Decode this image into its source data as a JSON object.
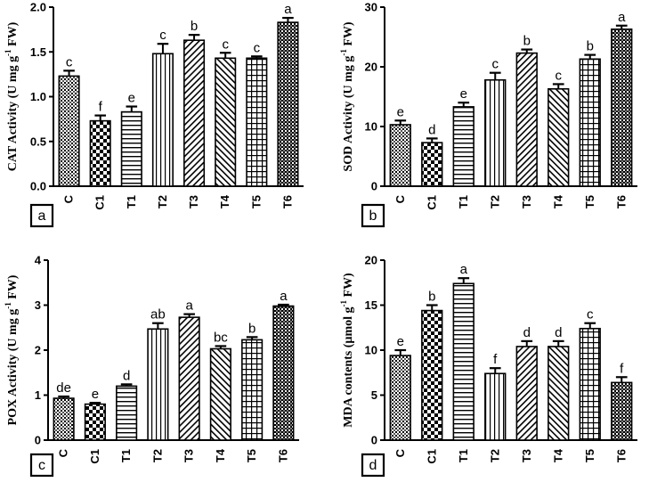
{
  "chart_data": [
    {
      "type": "bar",
      "panel": "a",
      "ylabel": "CAT Activity (U mg g-1 FW)",
      "ylabel_parts": [
        "CAT Activity (U mg g",
        "-1",
        " FW)"
      ],
      "ylim": [
        0,
        2.0
      ],
      "yticks": [
        "0.0",
        "0.5",
        "1.0",
        "1.5",
        "2.0"
      ],
      "categories": [
        "C",
        "C1",
        "T1",
        "T2",
        "T3",
        "T4",
        "T5",
        "T6"
      ],
      "values": [
        1.23,
        0.73,
        0.83,
        1.48,
        1.63,
        1.43,
        1.43,
        1.83
      ],
      "errors": [
        0.06,
        0.06,
        0.06,
        0.11,
        0.06,
        0.06,
        0.02,
        0.05
      ],
      "labels": [
        "c",
        "f",
        "e",
        "c",
        "b",
        "c",
        "c",
        "a"
      ]
    },
    {
      "type": "bar",
      "panel": "b",
      "ylabel": "SOD Activity (U mg g-1 FW)",
      "ylabel_parts": [
        "SOD Activity (U mg g",
        "-1",
        " FW)"
      ],
      "ylim": [
        0,
        30
      ],
      "yticks": [
        "0",
        "10",
        "20",
        "30"
      ],
      "categories": [
        "C",
        "C1",
        "T1",
        "T2",
        "T3",
        "T4",
        "T5",
        "T6"
      ],
      "values": [
        10.3,
        7.3,
        13.3,
        17.8,
        22.3,
        16.3,
        21.3,
        26.3
      ],
      "errors": [
        0.7,
        0.7,
        0.7,
        1.2,
        0.6,
        0.8,
        0.7,
        0.6
      ],
      "labels": [
        "e",
        "d",
        "e",
        "c",
        "b",
        "c",
        "b",
        "a"
      ]
    },
    {
      "type": "bar",
      "panel": "c",
      "ylabel": "POX Activity (U mg g-1 FW)",
      "ylabel_parts": [
        "POX Activity (U mg g",
        "-1",
        " FW)"
      ],
      "ylim": [
        0,
        4
      ],
      "yticks": [
        "0",
        "1",
        "2",
        "3",
        "4"
      ],
      "categories": [
        "C",
        "C1",
        "T1",
        "T2",
        "T3",
        "T4",
        "T5",
        "T6"
      ],
      "values": [
        0.93,
        0.8,
        1.2,
        2.47,
        2.73,
        2.03,
        2.23,
        2.98
      ],
      "errors": [
        0.04,
        0.03,
        0.04,
        0.13,
        0.07,
        0.06,
        0.06,
        0.03
      ],
      "labels": [
        "de",
        "e",
        "d",
        "ab",
        "a",
        "bc",
        "b",
        "a"
      ]
    },
    {
      "type": "bar",
      "panel": "d",
      "ylabel": "MDA contents (µmol g-1 FW)",
      "ylabel_parts": [
        "MDA contents (µmol g",
        "-1",
        " FW)"
      ],
      "ylim": [
        0,
        20
      ],
      "yticks": [
        "0",
        "5",
        "10",
        "15",
        "20"
      ],
      "categories": [
        "C",
        "C1",
        "T1",
        "T2",
        "T3",
        "T4",
        "T5",
        "T6"
      ],
      "values": [
        9.4,
        14.4,
        17.4,
        7.4,
        10.4,
        10.4,
        12.4,
        6.4
      ],
      "errors": [
        0.6,
        0.6,
        0.6,
        0.6,
        0.6,
        0.6,
        0.6,
        0.6
      ],
      "labels": [
        "e",
        "b",
        "a",
        "f",
        "d",
        "d",
        "c",
        "f"
      ]
    }
  ],
  "bar_patterns": [
    "dots",
    "checker",
    "hlines",
    "vlines",
    "diag-right",
    "diag-left",
    "grid",
    "dense-check"
  ],
  "colors": {
    "ink": "#000000",
    "background": "#ffffff"
  }
}
